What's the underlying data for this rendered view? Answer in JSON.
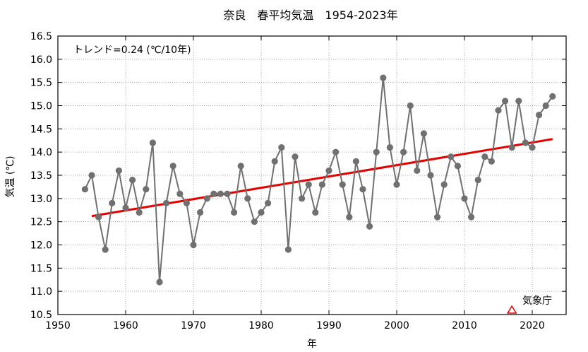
{
  "chart_data": {
    "type": "line",
    "title": "奈良　春平均気温　1954-2023年",
    "xlabel": "年",
    "ylabel": "気温 (℃)",
    "xlim": [
      1950,
      2025
    ],
    "ylim": [
      10.5,
      16.5
    ],
    "xticks": [
      1950,
      1960,
      1970,
      1980,
      1990,
      2000,
      2010,
      2020
    ],
    "yticks": [
      "10.5",
      "11.0",
      "11.5",
      "12.0",
      "12.5",
      "13.0",
      "13.5",
      "14.0",
      "14.5",
      "15.0",
      "15.5",
      "16.0",
      "16.5"
    ],
    "grid": true,
    "annotation": "トレンド=0.24 (℃/10年)",
    "source_label": "気象庁",
    "series": [
      {
        "x": [
          1954,
          1955,
          1956,
          1957,
          1958,
          1959,
          1960,
          1961,
          1962,
          1963,
          1964,
          1965,
          1966,
          1967,
          1968,
          1969,
          1970,
          1971,
          1972,
          1973,
          1974,
          1975,
          1976,
          1977,
          1978,
          1979,
          1980,
          1981,
          1982,
          1983,
          1984,
          1985,
          1986,
          1987,
          1988,
          1989,
          1990,
          1991,
          1992,
          1993,
          1994,
          1995,
          1996,
          1997,
          1998,
          1999,
          2000,
          2001,
          2002,
          2003,
          2004,
          2005,
          2006,
          2007,
          2008,
          2009,
          2010,
          2011,
          2012,
          2013,
          2014,
          2015,
          2016,
          2017,
          2018,
          2019,
          2020,
          2021,
          2022,
          2023
        ],
        "values": [
          13.2,
          13.5,
          12.6,
          11.9,
          12.9,
          13.6,
          12.8,
          13.4,
          12.7,
          13.2,
          14.2,
          11.2,
          12.9,
          13.7,
          13.1,
          12.9,
          12.0,
          12.7,
          13.0,
          13.1,
          13.1,
          13.1,
          12.7,
          13.7,
          13.0,
          12.5,
          12.7,
          12.9,
          13.8,
          14.1,
          11.9,
          13.9,
          13.0,
          13.3,
          12.7,
          13.3,
          13.6,
          14.0,
          13.3,
          12.6,
          13.8,
          13.2,
          12.4,
          14.0,
          15.6,
          14.1,
          13.3,
          14.0,
          15.0,
          13.6,
          14.4,
          13.5,
          12.6,
          13.3,
          13.9,
          13.7,
          13.0,
          12.6,
          13.4,
          13.9,
          13.8,
          14.9,
          15.1,
          14.1,
          15.1,
          14.2,
          14.1,
          14.8,
          15.0,
          15.2
        ],
        "color": "#707070"
      },
      {
        "x": [
          1955,
          2023
        ],
        "values": [
          12.62,
          14.28
        ],
        "color": "#e60000"
      }
    ],
    "marker": {
      "x": 2017,
      "y": 10.53,
      "color": "#e60000"
    }
  }
}
